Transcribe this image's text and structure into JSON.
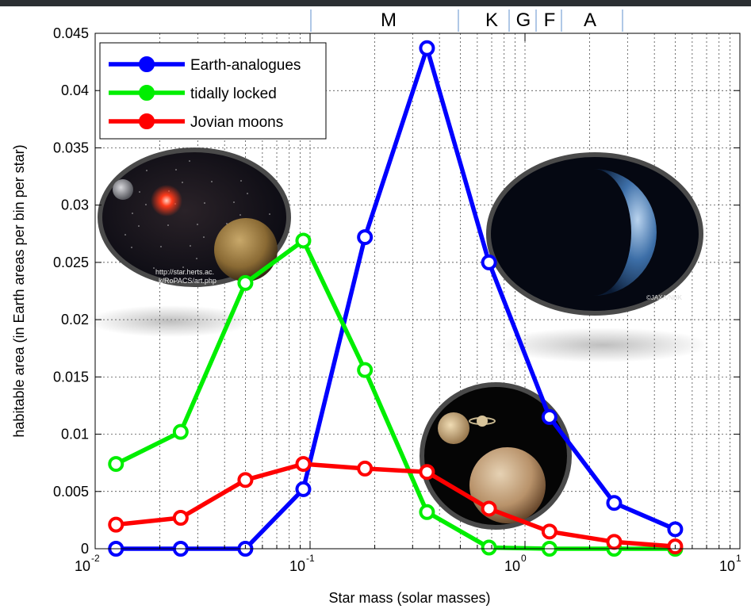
{
  "chart_data": {
    "type": "line",
    "xscale": "log",
    "xlim": [
      0.01,
      10
    ],
    "ylim": [
      0,
      0.045
    ],
    "yticks": [
      "0",
      "0.005",
      "0.01",
      "0.015",
      "0.02",
      "0.025",
      "0.03",
      "0.035",
      "0.04",
      "0.045"
    ],
    "xtick_bases": [
      "10",
      "10",
      "10",
      "10"
    ],
    "xtick_exps": [
      "-2",
      "-1",
      "0",
      "1"
    ],
    "xlabel": "Star mass (solar masses)",
    "ylabel": "habitable area (in Earth areas per bin per star)",
    "grid": true,
    "legend_position": "top-left",
    "spectral_classes": [
      "M",
      "K",
      "G",
      "F",
      "A"
    ],
    "x": [
      0.0125,
      0.025,
      0.05,
      0.093,
      0.18,
      0.35,
      0.68,
      1.3,
      2.6,
      5.0
    ],
    "series": [
      {
        "name": "Earth-analogues",
        "color": "#0000ff",
        "values": [
          0,
          0,
          0,
          0.0052,
          0.0272,
          0.0437,
          0.025,
          0.0115,
          0.004,
          0.0017
        ]
      },
      {
        "name": "tidally locked",
        "color": "#00ee00",
        "values": [
          0.0074,
          0.0102,
          0.0232,
          0.0269,
          0.0156,
          0.0032,
          0.0001,
          0,
          0,
          0
        ]
      },
      {
        "name": "Jovian moons",
        "color": "#ff0000",
        "values": [
          0.0021,
          0.0027,
          0.006,
          0.0074,
          0.007,
          0.0067,
          0.0035,
          0.0015,
          0.0006,
          0.0002
        ]
      }
    ],
    "annotations": [
      "http://star.herts.ac.uk/RoPACS/art.php",
      "©JAXA/NHK"
    ]
  }
}
